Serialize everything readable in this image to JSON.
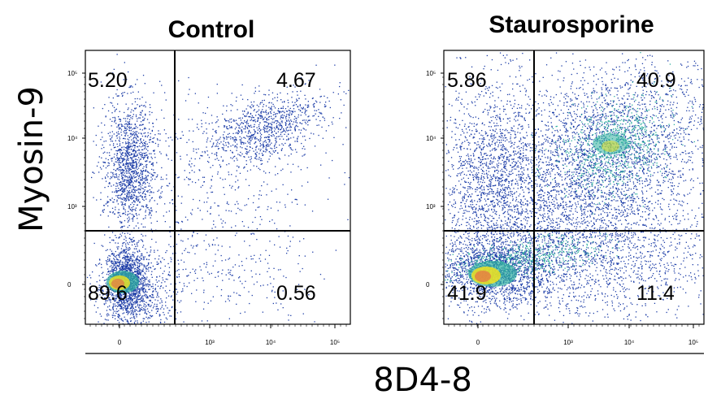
{
  "chart_data": {
    "type": "scatter",
    "ylabel": "Myosin-9",
    "xlabel": "8D4-8",
    "axis_scale": "biexponential (log with linear region near 0)",
    "y_ticks": [
      "0",
      "10³",
      "10⁴",
      "10⁵"
    ],
    "x_ticks": [
      "0",
      "10³",
      "10⁴",
      "10⁵"
    ],
    "colors": {
      "low_density": "#1f3fa8",
      "mid_density": "#2fae9f",
      "high_density": "#f2e21e",
      "peak_density": "#e85a4b"
    },
    "panels": [
      {
        "title": "Control",
        "quadrants": {
          "upper_left": "5.20",
          "upper_right": "4.67",
          "lower_left": "89.6",
          "lower_right": "0.56"
        }
      },
      {
        "title": "Staurosporine",
        "quadrants": {
          "upper_left": "5.86",
          "upper_right": "40.9",
          "lower_left": "41.9",
          "lower_right": "11.4"
        }
      }
    ]
  }
}
